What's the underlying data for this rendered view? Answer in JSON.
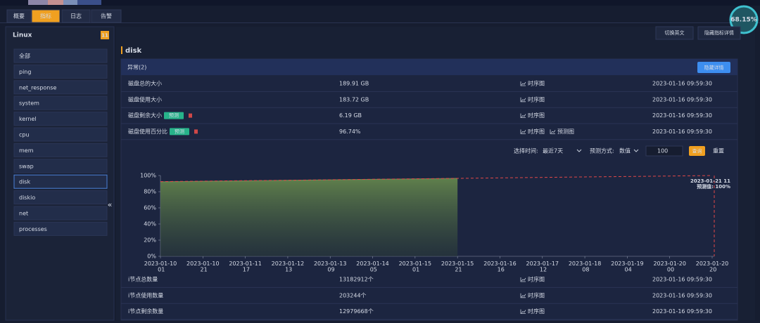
{
  "tabs": [
    "概要",
    "指标",
    "日志",
    "告警"
  ],
  "gauge": "68.15%",
  "sidebar": {
    "title": "Linux",
    "count": "11",
    "items": [
      "全部",
      "ping",
      "net_response",
      "system",
      "kernel",
      "cpu",
      "mem",
      "swap",
      "disk",
      "diskio",
      "net",
      "processes"
    ],
    "collapse": "«"
  },
  "toolbar": [
    "切换英文",
    "隐藏指标详情"
  ],
  "section_title": "disk",
  "panel": {
    "header": "异常(2)",
    "button": "隐藏详情"
  },
  "rows": [
    {
      "name": "磁盘总的大小",
      "value": "189.91 GB",
      "links": [
        "时序图"
      ],
      "time": "2023-01-16 09:59:30"
    },
    {
      "name": "磁盘使用大小",
      "value": "183.72 GB",
      "links": [
        "时序图"
      ],
      "time": "2023-01-16 09:59:30"
    },
    {
      "name": "磁盘剩余大小",
      "tag": "预测",
      "value": "6.19 GB",
      "links": [
        "时序图"
      ],
      "time": "2023-01-16 09:59:30"
    },
    {
      "name": "磁盘使用百分比",
      "tag": "预测",
      "value": "96.74%",
      "links": [
        "时序图",
        "预测图"
      ],
      "time": "2023-01-16 09:59:30"
    }
  ],
  "controls": {
    "time_label": "选择时间:",
    "time_value": "最近7天",
    "method_label": "预测方式:",
    "method_value": "数值",
    "input": "100",
    "query": "查询",
    "reset": "重置"
  },
  "chart_data": {
    "type": "area",
    "categories": [
      "2023-01-10 01",
      "2023-01-10 21",
      "2023-01-11 17",
      "2023-01-12 13",
      "2023-01-13 09",
      "2023-01-14 05",
      "2023-01-15 01",
      "2023-01-15 21",
      "2023-01-16 16",
      "2023-01-17 12",
      "2023-01-18 08",
      "2023-01-19 04",
      "2023-01-20 00",
      "2023-01-20 20"
    ],
    "series": [
      {
        "color": "#6b8f55",
        "values": [
          92.2,
          92.8,
          93.4,
          94.0,
          94.6,
          95.2,
          95.8,
          96.4,
          null,
          null,
          null,
          null,
          null,
          null
        ]
      },
      {
        "color": "#e04848",
        "values": [
          92.5,
          93.1,
          93.7,
          94.2,
          94.8,
          95.4,
          96.0,
          96.5,
          97.1,
          97.7,
          98.3,
          98.8,
          99.4,
          100
        ]
      }
    ],
    "ylim": [
      0,
      100
    ],
    "yticks": [
      {
        "value": 0,
        "label": "0%"
      },
      {
        "value": 20,
        "label": "20%"
      },
      {
        "value": 40,
        "label": "40%"
      },
      {
        "value": 60,
        "label": "60%"
      },
      {
        "value": 80,
        "label": "80%"
      },
      {
        "value": 100,
        "label": "100%"
      }
    ],
    "annotations": [
      "2023-01-21 11",
      "预测值: 100%"
    ]
  },
  "bottom_rows": [
    {
      "name": "i节点总数量",
      "value": "13182912个",
      "links": [
        "时序图"
      ],
      "time": "2023-01-16 09:59:30"
    },
    {
      "name": "i节点使用数量",
      "value": "203244个",
      "links": [
        "时序图"
      ],
      "time": "2023-01-16 09:59:30"
    },
    {
      "name": "i节点剩余数量",
      "value": "12979668个",
      "links": [
        "时序图"
      ],
      "time": "2023-01-16 09:59:30"
    }
  ]
}
